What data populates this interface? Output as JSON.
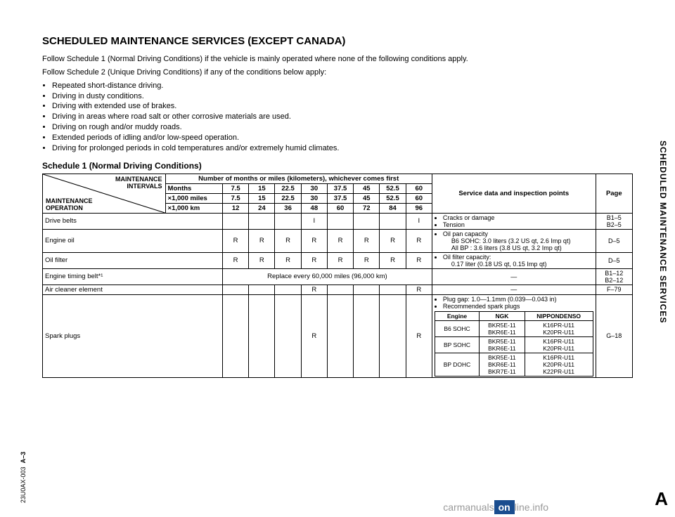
{
  "title": "SCHEDULED MAINTENANCE SERVICES (EXCEPT CANADA)",
  "intro1": "Follow Schedule 1 (Normal Driving Conditions) if the vehicle is mainly operated where none of the following conditions apply.",
  "intro2": "Follow Schedule 2 (Unique Driving Conditions) if any of the conditions below apply:",
  "conditions": [
    "Repeated short-distance driving.",
    "Driving in dusty conditions.",
    "Driving with extended use of brakes.",
    "Driving in areas where road salt or other corrosive materials are used.",
    "Driving on rough and/or muddy roads.",
    "Extended periods of idling and/or low-speed operation.",
    "Driving for prolonged periods in cold temperatures and/or extremely humid climates."
  ],
  "scheduleTitle": "Schedule 1 (Normal Driving Conditions)",
  "diag": {
    "top1": "MAINTENANCE",
    "top2": "INTERVALS",
    "bot1": "MAINTENANCE",
    "bot2": "OPERATION"
  },
  "headerRow": "Number of months or miles (kilometers), whichever comes first",
  "rows": {
    "months": {
      "label": "Months",
      "vals": [
        "7.5",
        "15",
        "22.5",
        "30",
        "37.5",
        "45",
        "52.5",
        "60"
      ]
    },
    "miles": {
      "label": "×1,000 miles",
      "vals": [
        "7.5",
        "15",
        "22.5",
        "30",
        "37.5",
        "45",
        "52.5",
        "60"
      ]
    },
    "km": {
      "label": "×1,000 km",
      "vals": [
        "12",
        "24",
        "36",
        "48",
        "60",
        "72",
        "84",
        "96"
      ]
    }
  },
  "svcHeader": "Service data and inspection points",
  "pageHeader": "Page",
  "items": [
    {
      "name": "Drive belts",
      "vals": [
        "",
        "",
        "",
        "I",
        "",
        "",
        "",
        "I"
      ],
      "svc": [
        "Cracks or damage",
        "Tension"
      ],
      "page": "B1–5\nB2–5"
    },
    {
      "name": "Engine oil",
      "vals": [
        "R",
        "R",
        "R",
        "R",
        "R",
        "R",
        "R",
        "R"
      ],
      "svc": [
        "Oil pan capacity",
        "B6 SOHC: 3.0 liters (3.2 US qt, 2.6 Imp qt)",
        "All BP   : 3.6 liters (3.8 US qt, 3.2 Imp qt)"
      ],
      "page": "D–5"
    },
    {
      "name": "Oil filter",
      "vals": [
        "R",
        "R",
        "R",
        "R",
        "R",
        "R",
        "R",
        "R"
      ],
      "svc": [
        "Oil filter capacity:",
        "0.17 liter (0.18 US qt, 0.15 Imp qt)"
      ],
      "page": "D–5"
    },
    {
      "name": "Engine timing belt*¹",
      "span": "Replace every 60,000 miles (96,000 km)",
      "svc": "—",
      "page": "B1–12\nB2–12"
    },
    {
      "name": "Air cleaner element",
      "vals": [
        "",
        "",
        "",
        "R",
        "",
        "",
        "",
        "R"
      ],
      "svc": "—",
      "page": "F–79"
    },
    {
      "name": "Spark plugs",
      "vals": [
        "",
        "",
        "",
        "R",
        "",
        "",
        "",
        "R"
      ],
      "plugInfo": {
        "gap": "Plug gap: 1.0—1.1mm (0.039—0.043 in)",
        "rec": "Recommended spark plugs",
        "header": [
          "Engine",
          "NGK",
          "NIPPONDENSO"
        ],
        "rows": [
          [
            "B6 SOHC",
            "BKR5E-11\nBKR6E-11",
            "K16PR-U11\nK20PR-U11"
          ],
          [
            "BP SOHC",
            "BKR5E-11\nBKR6E-11",
            "K16PR-U11\nK20PR-U11"
          ],
          [
            "BP DOHC",
            "BKR5E-11\nBKR6E-11\nBKR7E-11",
            "K16PR-U11\nK20PR-U11\nK22PR-U11"
          ]
        ]
      },
      "page": "G–18"
    }
  ],
  "sideText": "SCHEDULED MAINTENANCE SERVICES",
  "bigA": "A",
  "footCode": "23U0AX-003",
  "footPage": "A–3",
  "watermark": {
    "pre": "carmanuals",
    "box": "on",
    "post": "line.info"
  }
}
